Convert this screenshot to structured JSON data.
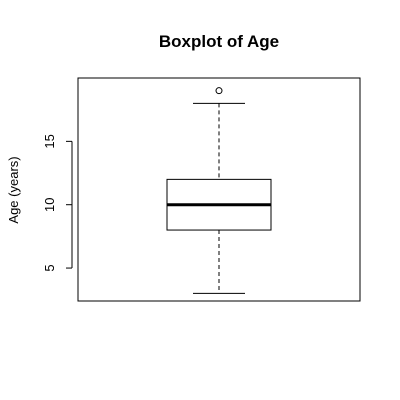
{
  "chart_data": {
    "type": "boxplot",
    "title": "Boxplot of Age",
    "xlabel": "",
    "ylabel": "Age (years)",
    "ylim": [
      2.4,
      20.0
    ],
    "yticks": [
      5,
      10,
      15
    ],
    "ytick_labels": [
      "5",
      "10",
      "15"
    ],
    "stats": {
      "min": 3,
      "q1": 8,
      "median": 10,
      "q3": 12,
      "max": 18,
      "outliers": [
        19
      ]
    },
    "grid": false,
    "legend": "none"
  }
}
